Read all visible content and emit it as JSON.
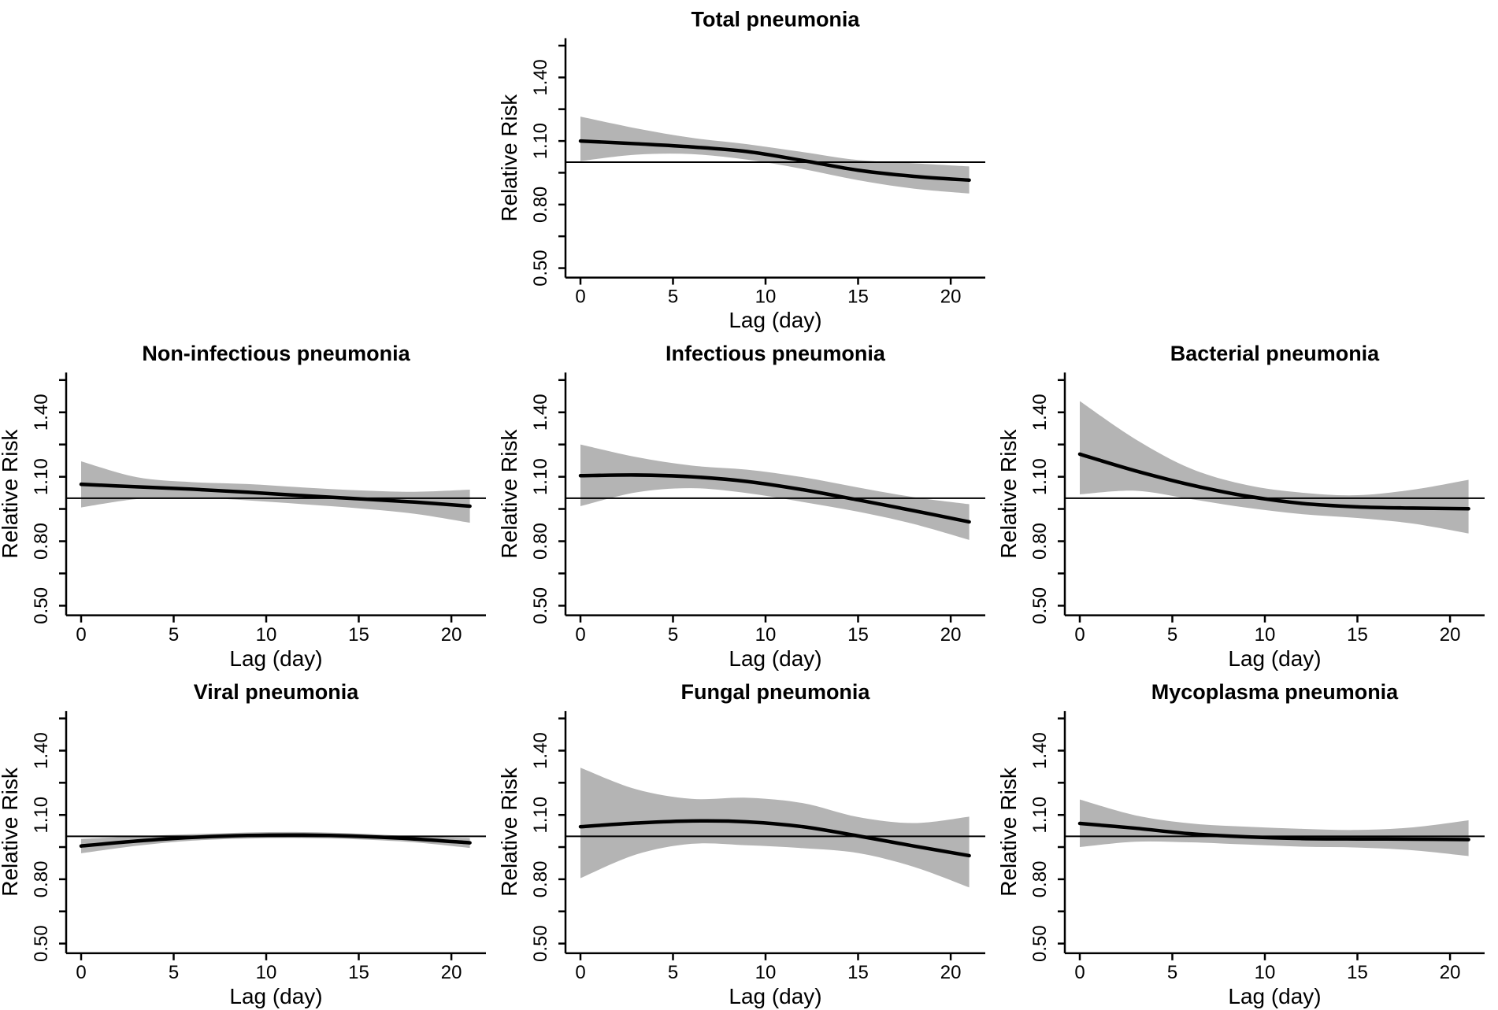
{
  "figure": {
    "background": "#ffffff",
    "y_axis_label": "Relative Risk",
    "x_axis_label": "Lag (day)",
    "y_tick_labels": [
      "0.50",
      "0.80",
      "1.10",
      "1.40"
    ],
    "y_tick_values": [
      0.5,
      0.8,
      1.1,
      1.4
    ],
    "y_minor_tick_values": [
      0.65,
      0.95,
      1.25,
      1.55
    ],
    "x_tick_labels": [
      "0",
      "5",
      "10",
      "15",
      "20"
    ],
    "x_tick_values": [
      0,
      5,
      10,
      15,
      20
    ],
    "reference_line_y": 1.0,
    "colors": {
      "band": "#b4b4b4",
      "line": "#000000",
      "axis": "#000000",
      "reference": "#000000",
      "background": "#ffffff"
    }
  },
  "chart_data": [
    {
      "type": "line",
      "title": "Total pneumonia",
      "xlabel": "Lag (day)",
      "ylabel": "Relative Risk",
      "grid_position": {
        "row": 0,
        "col": 1
      },
      "x": [
        0,
        3,
        6,
        9,
        12,
        15,
        18,
        21
      ],
      "series": [
        {
          "name": "relative_risk",
          "values": [
            1.1,
            1.087,
            1.072,
            1.05,
            1.008,
            0.962,
            0.933,
            0.915
          ]
        },
        {
          "name": "ci_upper",
          "values": [
            1.215,
            1.16,
            1.115,
            1.085,
            1.048,
            1.01,
            0.995,
            0.98
          ]
        },
        {
          "name": "ci_lower",
          "values": [
            1.005,
            1.035,
            1.038,
            1.012,
            0.968,
            0.915,
            0.875,
            0.852
          ]
        }
      ],
      "reference_line_y": 1.0,
      "x_ticks": [
        0,
        5,
        10,
        15,
        20
      ],
      "y_ticks": [
        0.5,
        0.8,
        1.1,
        1.4
      ],
      "xlim": [
        -0.81,
        21.87
      ],
      "ylim": [
        0.455,
        1.585
      ],
      "grid": false,
      "legend": false
    },
    {
      "type": "line",
      "title": "Non-infectious pneumonia",
      "xlabel": "Lag (day)",
      "ylabel": "Relative Risk",
      "grid_position": {
        "row": 1,
        "col": 0
      },
      "x": [
        0,
        3,
        6,
        9,
        12,
        15,
        18,
        21
      ],
      "series": [
        {
          "name": "relative_risk",
          "values": [
            1.065,
            1.053,
            1.042,
            1.028,
            1.012,
            0.997,
            0.982,
            0.963
          ]
        },
        {
          "name": "ci_upper",
          "values": [
            1.172,
            1.098,
            1.075,
            1.066,
            1.05,
            1.037,
            1.03,
            1.04
          ]
        },
        {
          "name": "ci_lower",
          "values": [
            0.957,
            0.996,
            1.003,
            0.99,
            0.972,
            0.953,
            0.928,
            0.886
          ]
        }
      ],
      "reference_line_y": 1.0,
      "x_ticks": [
        0,
        5,
        10,
        15,
        20
      ],
      "y_ticks": [
        0.5,
        0.8,
        1.1,
        1.4
      ],
      "xlim": [
        -0.81,
        21.87
      ],
      "ylim": [
        0.455,
        1.585
      ],
      "grid": false,
      "legend": false
    },
    {
      "type": "line",
      "title": "Infectious pneumonia",
      "xlabel": "Lag (day)",
      "ylabel": "Relative Risk",
      "grid_position": {
        "row": 1,
        "col": 1
      },
      "x": [
        0,
        3,
        6,
        9,
        12,
        15,
        18,
        21
      ],
      "series": [
        {
          "name": "relative_risk",
          "values": [
            1.105,
            1.108,
            1.1,
            1.078,
            1.04,
            0.992,
            0.942,
            0.89
          ]
        },
        {
          "name": "ci_upper",
          "values": [
            1.25,
            1.192,
            1.152,
            1.133,
            1.098,
            1.05,
            1.005,
            0.972
          ]
        },
        {
          "name": "ci_lower",
          "values": [
            0.963,
            1.027,
            1.047,
            1.024,
            0.983,
            0.937,
            0.88,
            0.806
          ]
        }
      ],
      "reference_line_y": 1.0,
      "x_ticks": [
        0,
        5,
        10,
        15,
        20
      ],
      "y_ticks": [
        0.5,
        0.8,
        1.1,
        1.4
      ],
      "xlim": [
        -0.81,
        21.87
      ],
      "ylim": [
        0.455,
        1.585
      ],
      "grid": false,
      "legend": false
    },
    {
      "type": "line",
      "title": "Bacterial pneumonia",
      "xlabel": "Lag (day)",
      "ylabel": "Relative Risk",
      "grid_position": {
        "row": 1,
        "col": 2
      },
      "x": [
        0,
        3,
        6,
        9,
        12,
        15,
        18,
        21
      ],
      "series": [
        {
          "name": "relative_risk",
          "values": [
            1.205,
            1.128,
            1.062,
            1.01,
            0.976,
            0.96,
            0.954,
            0.951
          ]
        },
        {
          "name": "ci_upper",
          "values": [
            1.452,
            1.275,
            1.138,
            1.062,
            1.026,
            1.014,
            1.04,
            1.086
          ]
        },
        {
          "name": "ci_lower",
          "values": [
            1.018,
            1.035,
            0.996,
            0.956,
            0.926,
            0.908,
            0.882,
            0.836
          ]
        }
      ],
      "reference_line_y": 1.0,
      "x_ticks": [
        0,
        5,
        10,
        15,
        20
      ],
      "y_ticks": [
        0.5,
        0.8,
        1.1,
        1.4
      ],
      "xlim": [
        -0.81,
        21.87
      ],
      "ylim": [
        0.455,
        1.585
      ],
      "grid": false,
      "legend": false
    },
    {
      "type": "line",
      "title": "Viral pneumonia",
      "xlabel": "Lag (day)",
      "ylabel": "Relative Risk",
      "grid_position": {
        "row": 2,
        "col": 0
      },
      "x": [
        0,
        3,
        6,
        9,
        12,
        15,
        18,
        21
      ],
      "series": [
        {
          "name": "relative_risk",
          "values": [
            0.955,
            0.978,
            0.995,
            1.004,
            1.006,
            1.0,
            0.988,
            0.97
          ]
        },
        {
          "name": "ci_upper",
          "values": [
            0.988,
            1.0,
            1.01,
            1.018,
            1.02,
            1.013,
            1.0,
            0.992
          ]
        },
        {
          "name": "ci_lower",
          "values": [
            0.921,
            0.956,
            0.98,
            0.99,
            0.992,
            0.986,
            0.972,
            0.946
          ]
        }
      ],
      "reference_line_y": 1.0,
      "x_ticks": [
        0,
        5,
        10,
        15,
        20
      ],
      "y_ticks": [
        0.5,
        0.8,
        1.1,
        1.4
      ],
      "xlim": [
        -0.81,
        21.87
      ],
      "ylim": [
        0.455,
        1.585
      ],
      "grid": false,
      "legend": false
    },
    {
      "type": "line",
      "title": "Fungal pneumonia",
      "xlabel": "Lag (day)",
      "ylabel": "Relative Risk",
      "grid_position": {
        "row": 2,
        "col": 1
      },
      "x": [
        0,
        3,
        6,
        9,
        12,
        15,
        18,
        21
      ],
      "series": [
        {
          "name": "relative_risk",
          "values": [
            1.045,
            1.062,
            1.072,
            1.068,
            1.045,
            1.002,
            0.955,
            0.91
          ]
        },
        {
          "name": "ci_upper",
          "values": [
            1.32,
            1.22,
            1.175,
            1.18,
            1.155,
            1.09,
            1.062,
            1.092
          ]
        },
        {
          "name": "ci_lower",
          "values": [
            0.805,
            0.915,
            0.965,
            0.958,
            0.945,
            0.922,
            0.858,
            0.762
          ]
        }
      ],
      "reference_line_y": 1.0,
      "x_ticks": [
        0,
        5,
        10,
        15,
        20
      ],
      "y_ticks": [
        0.5,
        0.8,
        1.1,
        1.4
      ],
      "xlim": [
        -0.81,
        21.87
      ],
      "ylim": [
        0.455,
        1.585
      ],
      "grid": false,
      "legend": false
    },
    {
      "type": "line",
      "title": "Mycoplasma pneumonia",
      "xlabel": "Lag (day)",
      "ylabel": "Relative Risk",
      "grid_position": {
        "row": 2,
        "col": 2
      },
      "x": [
        0,
        3,
        6,
        9,
        12,
        15,
        18,
        21
      ],
      "series": [
        {
          "name": "relative_risk",
          "values": [
            1.06,
            1.038,
            1.012,
            0.998,
            0.99,
            0.988,
            0.987,
            0.985
          ]
        },
        {
          "name": "ci_upper",
          "values": [
            1.172,
            1.098,
            1.06,
            1.045,
            1.035,
            1.03,
            1.042,
            1.075
          ]
        },
        {
          "name": "ci_lower",
          "values": [
            0.95,
            0.975,
            0.972,
            0.962,
            0.952,
            0.948,
            0.935,
            0.908
          ]
        }
      ],
      "reference_line_y": 1.0,
      "x_ticks": [
        0,
        5,
        10,
        15,
        20
      ],
      "y_ticks": [
        0.5,
        0.8,
        1.1,
        1.4
      ],
      "xlim": [
        -0.81,
        21.87
      ],
      "ylim": [
        0.455,
        1.585
      ],
      "grid": false,
      "legend": false
    }
  ]
}
